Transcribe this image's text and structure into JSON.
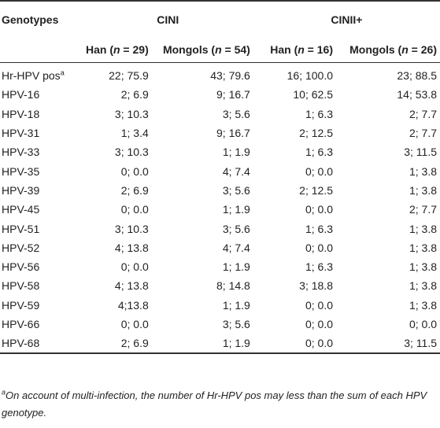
{
  "header": {
    "genotypes_label": "Genotypes",
    "group1": "CINI",
    "group2": "CINII+",
    "subheaders": [
      "Han (n = 29)",
      "Mongols (n = 54)",
      "Han (n = 16)",
      "Mongols (n = 26)"
    ]
  },
  "rows": [
    {
      "label": "Hr-HPV pos",
      "sup": "a",
      "values": [
        "22; 75.9",
        "43; 79.6",
        "16; 100.0",
        "23; 88.5"
      ]
    },
    {
      "label": "HPV-16",
      "values": [
        "2; 6.9",
        "9; 16.7",
        "10; 62.5",
        "14; 53.8"
      ]
    },
    {
      "label": "HPV-18",
      "values": [
        "3; 10.3",
        "3; 5.6",
        "1; 6.3",
        "2; 7.7"
      ]
    },
    {
      "label": "HPV-31",
      "values": [
        "1; 3.4",
        "9; 16.7",
        "2; 12.5",
        "2; 7.7"
      ]
    },
    {
      "label": "HPV-33",
      "values": [
        "3; 10.3",
        "1; 1.9",
        "1; 6.3",
        "3; 11.5"
      ]
    },
    {
      "label": "HPV-35",
      "values": [
        "0; 0.0",
        "4; 7.4",
        "0; 0.0",
        "1; 3.8"
      ]
    },
    {
      "label": "HPV-39",
      "values": [
        "2; 6.9",
        "3; 5.6",
        "2; 12.5",
        "1; 3.8"
      ]
    },
    {
      "label": "HPV-45",
      "values": [
        "0; 0.0",
        "1; 1.9",
        "0; 0.0",
        "2; 7.7"
      ]
    },
    {
      "label": "HPV-51",
      "values": [
        "3; 10.3",
        "3; 5.6",
        "1; 6.3",
        "1; 3.8"
      ]
    },
    {
      "label": "HPV-52",
      "values": [
        "4; 13.8",
        "4; 7.4",
        "0; 0.0",
        "1; 3.8"
      ]
    },
    {
      "label": "HPV-56",
      "values": [
        "0; 0.0",
        "1; 1.9",
        "1; 6.3",
        "1; 3.8"
      ]
    },
    {
      "label": "HPV-58",
      "values": [
        "4; 13.8",
        "8; 14.8",
        "3; 18.8",
        "1; 3.8"
      ]
    },
    {
      "label": "HPV-59",
      "values": [
        "4;13.8",
        "1; 1.9",
        "0; 0.0",
        "1; 3.8"
      ]
    },
    {
      "label": "HPV-66",
      "values": [
        "0; 0.0",
        "3; 5.6",
        "0; 0.0",
        "0; 0.0"
      ]
    },
    {
      "label": "HPV-68",
      "values": [
        "2; 6.9",
        "1; 1.9",
        "0; 0.0",
        "3; 11.5"
      ]
    }
  ],
  "footnote": {
    "marker": "a",
    "text": "On account of multi-infection, the number of Hr-HPV pos may less than the sum of each HPV genotype."
  }
}
